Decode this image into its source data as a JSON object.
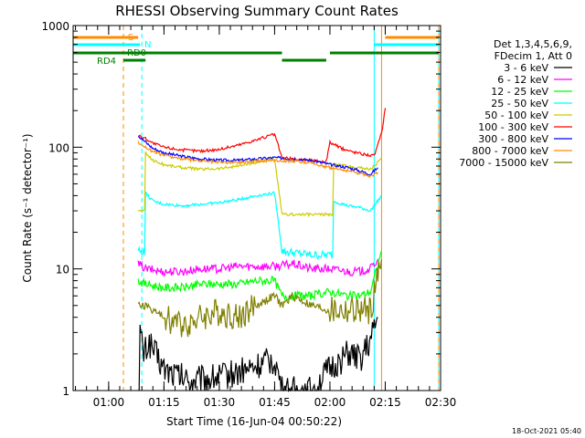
{
  "chart_data": {
    "type": "line",
    "title": "RHESSI Observing Summary Count Rates",
    "xlabel": "Start Time (16-Jun-04 00:50:22)",
    "ylabel": "Count Rate (s⁻¹ detector⁻¹)",
    "x_unit": "UT",
    "xlim": [
      "00:50:22",
      "02:30:00"
    ],
    "ylim": [
      1,
      1000
    ],
    "yscale": "log",
    "x_ticks": [
      "01:00",
      "01:15",
      "01:30",
      "01:45",
      "02:00",
      "02:15",
      "02:30"
    ],
    "y_ticks": [
      {
        "value": 1,
        "label": "1"
      },
      {
        "value": 10,
        "label": "10"
      },
      {
        "value": 100,
        "label": "100"
      },
      {
        "value": 1000,
        "label": "1000"
      }
    ],
    "legend_header": [
      "Det 1,3,4,5,6,9,",
      "FDecim 1, Att 0"
    ],
    "legend_position": "right",
    "footer_date": "18-Oct-2021 05:40",
    "series": [
      {
        "name": "3 - 6 keV",
        "color": "#000000",
        "points": [
          [
            "01:08:00",
            1
          ],
          [
            "01:08:30",
            3
          ],
          [
            "01:09:30",
            2
          ],
          [
            "01:11:00",
            2.5
          ],
          [
            "01:15:00",
            1.5
          ],
          [
            "01:22:00",
            1.2
          ],
          [
            "01:30:00",
            1.3
          ],
          [
            "01:38:00",
            1.5
          ],
          [
            "01:45:00",
            1.8
          ],
          [
            "01:47:00",
            1
          ],
          [
            "01:55:00",
            1
          ],
          [
            "02:00:00",
            1.5
          ],
          [
            "02:05:00",
            2
          ],
          [
            "02:08:00",
            1.8
          ],
          [
            "02:11:00",
            2.5
          ],
          [
            "02:13:00",
            4
          ]
        ]
      },
      {
        "name": "6 - 12 keV",
        "color": "#ff00ff",
        "points": [
          [
            "01:08:00",
            11
          ],
          [
            "01:10:00",
            10
          ],
          [
            "01:15:00",
            9.5
          ],
          [
            "01:20:00",
            9.5
          ],
          [
            "01:25:00",
            10
          ],
          [
            "01:30:00",
            10
          ],
          [
            "01:35:00",
            10.5
          ],
          [
            "01:40:00",
            10.5
          ],
          [
            "01:45:00",
            10.5
          ],
          [
            "01:50:00",
            11
          ],
          [
            "01:55:00",
            10
          ],
          [
            "02:00:00",
            10
          ],
          [
            "02:05:00",
            9.5
          ],
          [
            "02:08:00",
            9.5
          ],
          [
            "02:11:00",
            10
          ],
          [
            "02:13:00",
            12
          ]
        ]
      },
      {
        "name": "12 - 25 keV",
        "color": "#00ff00",
        "points": [
          [
            "01:08:00",
            8
          ],
          [
            "01:10:00",
            7.5
          ],
          [
            "01:15:00",
            7
          ],
          [
            "01:20:00",
            7
          ],
          [
            "01:25:00",
            7.5
          ],
          [
            "01:30:00",
            7.5
          ],
          [
            "01:35:00",
            7.5
          ],
          [
            "01:40:00",
            8
          ],
          [
            "01:45:00",
            8
          ],
          [
            "01:47:00",
            6
          ],
          [
            "01:55:00",
            6
          ],
          [
            "02:00:00",
            6.5
          ],
          [
            "02:05:00",
            6
          ],
          [
            "02:08:00",
            6
          ],
          [
            "02:11:00",
            6.5
          ],
          [
            "02:14:00",
            14
          ]
        ]
      },
      {
        "name": "25 - 50 keV",
        "color": "#00ffff",
        "points": [
          [
            "01:08:00",
            14
          ],
          [
            "01:09:00",
            14
          ],
          [
            "01:10:00",
            42
          ],
          [
            "01:12:00",
            36
          ],
          [
            "01:15:00",
            34
          ],
          [
            "01:20:00",
            33
          ],
          [
            "01:25:00",
            34
          ],
          [
            "01:30:00",
            35
          ],
          [
            "01:35:00",
            37
          ],
          [
            "01:40:00",
            40
          ],
          [
            "01:45:00",
            42
          ],
          [
            "01:47:00",
            14
          ],
          [
            "01:55:00",
            13
          ],
          [
            "02:00:00",
            13
          ],
          [
            "02:01:00",
            36
          ],
          [
            "02:05:00",
            33
          ],
          [
            "02:08:00",
            32
          ],
          [
            "02:11:00",
            30
          ],
          [
            "02:14:00",
            40
          ]
        ]
      },
      {
        "name": "50 - 100 keV",
        "color": "#cccc00",
        "points": [
          [
            "01:08:00",
            30
          ],
          [
            "01:09:00",
            30
          ],
          [
            "01:10:00",
            90
          ],
          [
            "01:12:00",
            78
          ],
          [
            "01:15:00",
            72
          ],
          [
            "01:20:00",
            68
          ],
          [
            "01:25:00",
            66
          ],
          [
            "01:30:00",
            67
          ],
          [
            "01:35:00",
            70
          ],
          [
            "01:40:00",
            75
          ],
          [
            "01:45:00",
            80
          ],
          [
            "01:47:00",
            28
          ],
          [
            "01:55:00",
            28
          ],
          [
            "02:00:00",
            28
          ],
          [
            "02:01:00",
            72
          ],
          [
            "02:05:00",
            70
          ],
          [
            "02:08:00",
            68
          ],
          [
            "02:11:00",
            66
          ],
          [
            "02:14:00",
            80
          ]
        ]
      },
      {
        "name": "100 - 300 keV",
        "color": "#ff0000",
        "points": [
          [
            "01:08:00",
            125
          ],
          [
            "01:10:00",
            118
          ],
          [
            "01:12:00",
            108
          ],
          [
            "01:15:00",
            100
          ],
          [
            "01:20:00",
            95
          ],
          [
            "01:25:00",
            93
          ],
          [
            "01:30:00",
            96
          ],
          [
            "01:35:00",
            104
          ],
          [
            "01:40:00",
            115
          ],
          [
            "01:45:00",
            128
          ],
          [
            "01:47:00",
            82
          ],
          [
            "01:50:00",
            80
          ],
          [
            "01:55:00",
            78
          ],
          [
            "01:59:00",
            76
          ],
          [
            "02:00:00",
            110
          ],
          [
            "02:03:00",
            98
          ],
          [
            "02:06:00",
            92
          ],
          [
            "02:09:00",
            88
          ],
          [
            "02:12:00",
            85
          ],
          [
            "02:14:00",
            130
          ],
          [
            "02:15:00",
            210
          ]
        ]
      },
      {
        "name": "300 - 800 keV",
        "color": "#0000ff",
        "points": [
          [
            "01:08:00",
            125
          ],
          [
            "01:10:00",
            110
          ],
          [
            "01:12:00",
            98
          ],
          [
            "01:15:00",
            90
          ],
          [
            "01:20:00",
            84
          ],
          [
            "01:25:00",
            80
          ],
          [
            "01:30:00",
            78
          ],
          [
            "01:35:00",
            78
          ],
          [
            "01:40:00",
            80
          ],
          [
            "01:45:00",
            82
          ],
          [
            "01:50:00",
            80
          ],
          [
            "01:55:00",
            78
          ],
          [
            "02:00:00",
            72
          ],
          [
            "02:05:00",
            68
          ],
          [
            "02:08:00",
            64
          ],
          [
            "02:11:00",
            60
          ],
          [
            "02:13:00",
            68
          ]
        ]
      },
      {
        "name": "800 - 7000 keV",
        "color": "#ff8c00",
        "points": [
          [
            "01:08:00",
            110
          ],
          [
            "01:10:00",
            100
          ],
          [
            "01:12:00",
            92
          ],
          [
            "01:15:00",
            86
          ],
          [
            "01:20:00",
            80
          ],
          [
            "01:25:00",
            77
          ],
          [
            "01:30:00",
            75
          ],
          [
            "01:35:00",
            75
          ],
          [
            "01:40:00",
            77
          ],
          [
            "01:45:00",
            78
          ],
          [
            "01:50:00",
            77
          ],
          [
            "01:55:00",
            74
          ],
          [
            "02:00:00",
            68
          ],
          [
            "02:05:00",
            64
          ],
          [
            "02:08:00",
            61
          ],
          [
            "02:11:00",
            58
          ],
          [
            "02:13:00",
            62
          ]
        ]
      },
      {
        "name": "7000 - 15000 keV",
        "color": "#808000",
        "points": [
          [
            "01:08:00",
            5
          ],
          [
            "01:10:00",
            5
          ],
          [
            "01:15:00",
            4
          ],
          [
            "01:20:00",
            3.5
          ],
          [
            "01:25:00",
            4
          ],
          [
            "01:30:00",
            4.5
          ],
          [
            "01:35:00",
            4
          ],
          [
            "01:40:00",
            5
          ],
          [
            "01:45:00",
            6
          ],
          [
            "01:47:00",
            5
          ],
          [
            "01:50:00",
            6
          ],
          [
            "01:55:00",
            5
          ],
          [
            "02:00:00",
            4.5
          ],
          [
            "02:05:00",
            4.5
          ],
          [
            "02:08:00",
            4.5
          ],
          [
            "02:11:00",
            4.5
          ],
          [
            "02:14:00",
            12
          ]
        ]
      }
    ],
    "flags": [
      {
        "label": "S",
        "color": "#ff8c00",
        "y_level": 0,
        "segments": [
          [
            "00:50:22",
            "01:08:00"
          ],
          [
            "02:15:00",
            "02:29:30"
          ]
        ]
      },
      {
        "label": "N",
        "color": "#00ffff",
        "y_level": 1,
        "segments": [
          [
            "00:50:22",
            "01:08:30"
          ],
          [
            "02:12:00",
            "02:29:30"
          ]
        ]
      },
      {
        "label": "RD0",
        "color": "#008000",
        "y_level": 2,
        "segments": [
          [
            "00:50:22",
            "01:47:00"
          ],
          [
            "02:00:00",
            "02:29:30"
          ]
        ]
      },
      {
        "label": "RD4",
        "color": "#008000",
        "y_level": 3,
        "segments": [
          [
            "01:04:00",
            "01:10:00"
          ],
          [
            "01:47:00",
            "01:59:00"
          ]
        ]
      }
    ],
    "vertical_markers": [
      {
        "time": "00:50:22",
        "color": "#00ffff",
        "style": "solid"
      },
      {
        "time": "01:04:00",
        "color": "#ff8c00",
        "style": "dashed"
      },
      {
        "time": "01:09:00",
        "color": "#00ffff",
        "style": "dashed"
      },
      {
        "time": "02:12:00",
        "color": "#00ffff",
        "style": "solid"
      },
      {
        "time": "02:14:00",
        "color": "#ff8c00",
        "style": "solid"
      },
      {
        "time": "02:29:30",
        "color": "#00ffff",
        "style": "solid"
      },
      {
        "time": "02:29:30",
        "color": "#ff8c00",
        "style": "dashed"
      }
    ]
  }
}
